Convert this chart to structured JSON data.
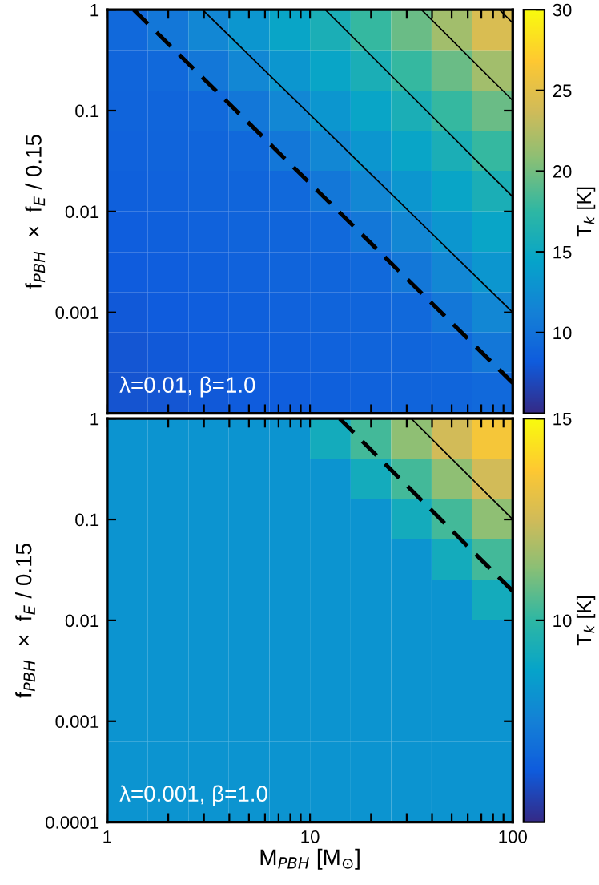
{
  "chart_data": [
    {
      "type": "heatmap",
      "clabel": "T$_{k}$ [K]",
      "ylabel": "f$_{PBH}$  ×  f$_{E}$ / 0.15",
      "annotations": [
        "λ=0.01, β=1.0"
      ],
      "x": [
        1.26,
        2.0,
        3.16,
        5.01,
        7.94,
        12.6,
        20,
        31.6,
        50.1,
        79.4
      ],
      "y": [
        0.63,
        0.25,
        0.1,
        0.04,
        0.016,
        0.0063,
        0.0025,
        0.001,
        0.0004,
        0.00016
      ],
      "log": "xy",
      "xlim": [
        1,
        100
      ],
      "ylim": [
        0.0001,
        1
      ],
      "clim": [
        5,
        30
      ],
      "cticks": [
        10,
        15,
        20,
        25,
        30
      ],
      "tick_labels": "y",
      "xticks": [
        1,
        {
          "value": 2,
          "label": null
        },
        {
          "value": 3,
          "label": null
        },
        {
          "value": 4,
          "label": null
        },
        {
          "value": 5,
          "label": null
        },
        {
          "value": 6,
          "label": null
        },
        {
          "value": 7,
          "label": null
        },
        {
          "value": 8,
          "label": null
        },
        {
          "value": 9,
          "label": null
        },
        10,
        {
          "value": 20,
          "label": null
        },
        {
          "value": 30,
          "label": null
        },
        {
          "value": 40,
          "label": null
        },
        {
          "value": 50,
          "label": null
        },
        {
          "value": 60,
          "label": null
        },
        {
          "value": 70,
          "label": null
        },
        {
          "value": 80,
          "label": null
        },
        {
          "value": 90,
          "label": null
        },
        100
      ],
      "yticks": [
        {
          "value": 0.0001,
          "label": null
        },
        0.001,
        0.01,
        0.1,
        1
      ],
      "cells": [
        [
          9.2,
          10.4,
          11.8,
          13.2,
          14.6,
          16.0,
          17.7,
          19.6,
          21.7,
          24.3
        ],
        [
          9.0,
          9.2,
          10.4,
          11.8,
          13.2,
          14.6,
          16.0,
          17.7,
          19.6,
          21.7
        ],
        [
          8.9,
          9.0,
          9.2,
          10.4,
          11.8,
          13.2,
          14.6,
          16.0,
          17.7,
          19.6
        ],
        [
          8.7,
          8.9,
          9.0,
          9.2,
          10.4,
          11.8,
          13.2,
          14.6,
          16.0,
          17.7
        ],
        [
          8.5,
          8.7,
          8.9,
          9.0,
          9.2,
          10.4,
          11.8,
          13.2,
          14.6,
          16.0
        ],
        [
          8.4,
          8.5,
          8.7,
          8.9,
          9.0,
          9.2,
          10.4,
          11.8,
          13.2,
          14.6
        ],
        [
          8.2,
          8.4,
          8.5,
          8.7,
          8.9,
          9.0,
          9.2,
          10.4,
          11.8,
          13.2
        ],
        [
          8.0,
          8.2,
          8.4,
          8.5,
          8.7,
          8.9,
          9.0,
          9.2,
          10.4,
          11.8
        ],
        [
          7.8,
          8.0,
          8.2,
          8.4,
          8.5,
          8.7,
          8.9,
          9.0,
          9.2,
          10.4
        ],
        [
          7.7,
          7.8,
          8.0,
          8.2,
          8.4,
          8.5,
          8.7,
          8.9,
          9.0,
          9.2
        ]
      ],
      "series": [
        {
          "type": "line",
          "line_style": "dashed",
          "color": "#000000",
          "x": [
            1.35,
            100
          ],
          "values": [
            1,
            0.0002
          ]
        },
        {
          "type": "line",
          "line_style": "solid",
          "color": "#000000",
          "x": [
            2.95,
            100
          ],
          "values": [
            1,
            0.001
          ]
        },
        {
          "type": "line",
          "line_style": "solid",
          "color": "#000000",
          "x": [
            11.9,
            100
          ],
          "values": [
            1,
            0.014
          ]
        },
        {
          "type": "line",
          "line_style": "solid",
          "color": "#000000",
          "x": [
            35.5,
            100
          ],
          "values": [
            1,
            0.126
          ]
        },
        {
          "type": "line",
          "line_style": "solid",
          "color": "#000000",
          "x": [
            86,
            100
          ],
          "values": [
            1,
            0.74
          ]
        }
      ]
    },
    {
      "type": "heatmap",
      "clabel": "T$_{k}$ [K]",
      "ylabel": "f$_{PBH}$  ×  f$_{E}$ / 0.15",
      "xlabel": "M$_{PBH}$ [M$_{⊙}$]",
      "annotations": [
        "λ=0.001, β=1.0"
      ],
      "x": [
        1.26,
        2.0,
        3.16,
        5.01,
        7.94,
        12.6,
        20,
        31.6,
        50.1,
        79.4
      ],
      "y": [
        0.63,
        0.25,
        0.1,
        0.04,
        0.016,
        0.0063,
        0.0025,
        0.001,
        0.0004,
        0.00016
      ],
      "log": "xy",
      "xlim": [
        1,
        100
      ],
      "ylim": [
        0.0001,
        1
      ],
      "clim": [
        5,
        15
      ],
      "cticks": [
        10,
        15
      ],
      "xticks": [
        1,
        {
          "value": 2,
          "label": null
        },
        {
          "value": 3,
          "label": null
        },
        {
          "value": 4,
          "label": null
        },
        {
          "value": 5,
          "label": null
        },
        {
          "value": 6,
          "label": null
        },
        {
          "value": 7,
          "label": null
        },
        {
          "value": 8,
          "label": null
        },
        {
          "value": 9,
          "label": null
        },
        10,
        {
          "value": 20,
          "label": null
        },
        {
          "value": 30,
          "label": null
        },
        {
          "value": 40,
          "label": null
        },
        {
          "value": 50,
          "label": null
        },
        {
          "value": 60,
          "label": null
        },
        {
          "value": 70,
          "label": null
        },
        {
          "value": 80,
          "label": null
        },
        {
          "value": 90,
          "label": null
        },
        100
      ],
      "yticks": [
        0.0001,
        0.001,
        0.01,
        0.1,
        1
      ],
      "cells": [
        [
          8.2,
          8.2,
          8.2,
          8.2,
          8.2,
          9.2,
          10.3,
          11.4,
          12.5,
          13.5
        ],
        [
          8.2,
          8.2,
          8.2,
          8.2,
          8.2,
          8.2,
          9.2,
          10.3,
          11.4,
          12.5
        ],
        [
          8.2,
          8.2,
          8.2,
          8.2,
          8.2,
          8.2,
          8.2,
          9.2,
          10.3,
          11.4
        ],
        [
          8.2,
          8.2,
          8.2,
          8.2,
          8.2,
          8.2,
          8.2,
          8.2,
          9.2,
          10.3
        ],
        [
          8.2,
          8.2,
          8.2,
          8.2,
          8.2,
          8.2,
          8.2,
          8.2,
          8.2,
          9.2
        ],
        [
          8.2,
          8.2,
          8.2,
          8.2,
          8.2,
          8.2,
          8.2,
          8.2,
          8.2,
          8.2
        ],
        [
          8.2,
          8.2,
          8.2,
          8.2,
          8.2,
          8.2,
          8.2,
          8.2,
          8.2,
          8.2
        ],
        [
          8.2,
          8.2,
          8.2,
          8.2,
          8.2,
          8.2,
          8.2,
          8.2,
          8.2,
          8.2
        ],
        [
          8.2,
          8.2,
          8.2,
          8.2,
          8.2,
          8.2,
          8.2,
          8.2,
          8.2,
          8.2
        ],
        [
          8.2,
          8.2,
          8.2,
          8.2,
          8.2,
          8.2,
          8.2,
          8.2,
          8.2,
          8.2
        ]
      ],
      "series": [
        {
          "type": "line",
          "line_style": "dashed",
          "color": "#000000",
          "x": [
            14,
            100
          ],
          "values": [
            1,
            0.0195
          ]
        },
        {
          "type": "line",
          "line_style": "solid",
          "color": "#000000",
          "x": [
            31.6,
            100
          ],
          "values": [
            1,
            0.1
          ]
        }
      ]
    }
  ]
}
